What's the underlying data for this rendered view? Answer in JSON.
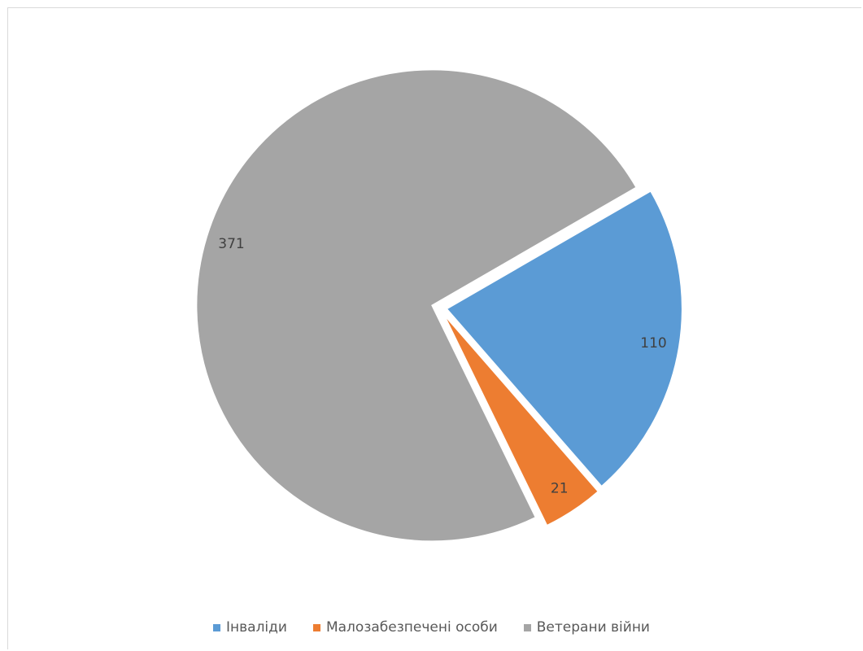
{
  "chart_data": {
    "type": "pie",
    "categories": [
      "Інваліди",
      "Малозабезпечені особи",
      "Ветерани війни"
    ],
    "values": [
      110,
      21,
      371
    ],
    "colors": [
      "#5b9bd5",
      "#ed7d31",
      "#a5a5a5"
    ],
    "exploded": true,
    "legend": "bottom",
    "title": ""
  }
}
